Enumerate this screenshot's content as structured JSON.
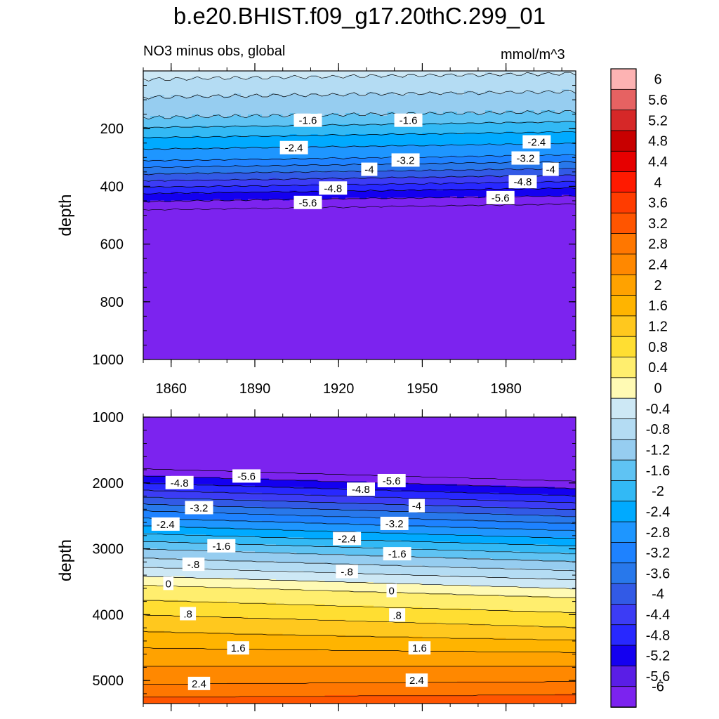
{
  "title": "b.e20.BHIST.f09_g17.20thC.299_01",
  "subtitle_left": "NO3 minus obs, global",
  "subtitle_right": "mmol/m^3",
  "colorbar": {
    "levels": [
      "6",
      "5.6",
      "5.2",
      "4.8",
      "4.4",
      "4",
      "3.6",
      "3.2",
      "2.8",
      "2.4",
      "2",
      "1.6",
      "1.2",
      "0.8",
      "0.4",
      "0",
      "-0.4",
      "-0.8",
      "-1.2",
      "-1.6",
      "-2",
      "-2.4",
      "-2.8",
      "-3.2",
      "-3.6",
      "-4",
      "-4.4",
      "-4.8",
      "-5.2",
      "-5.6",
      "-6"
    ],
    "colors": [
      "#fdb3b3",
      "#e66262",
      "#d62828",
      "#c80000",
      "#e60000",
      "#ff1a00",
      "#ff3c00",
      "#ff5500",
      "#ff7700",
      "#ff8800",
      "#ffa200",
      "#ffb400",
      "#ffc81e",
      "#ffde32",
      "#ffee6e",
      "#fffab4",
      "#cde8f5",
      "#b4dcf3",
      "#96cdf0",
      "#5fc3f3",
      "#32b9f5",
      "#00aaff",
      "#1e96ff",
      "#1e82ff",
      "#2878eb",
      "#325ae6",
      "#3c3cf5",
      "#2828ff",
      "#1400f0",
      "#5a1ee6",
      "#7c23ef"
    ]
  },
  "chart_data": [
    {
      "type": "heatmap",
      "subtype": "contour",
      "panel": "upper",
      "ylabel": "depth",
      "y_reversed": true,
      "ylim": [
        0,
        1000
      ],
      "xlim": [
        1850,
        2005
      ],
      "xticks": [
        1860,
        1890,
        1920,
        1950,
        1980
      ],
      "yticks": [
        200,
        400,
        600,
        800,
        1000
      ],
      "contour_interval": 0.4,
      "contour_labels": [
        {
          "text": "-1.6",
          "x": 1909,
          "depth": 172
        },
        {
          "text": "-1.6",
          "x": 1945,
          "depth": 172
        },
        {
          "text": "-2.4",
          "x": 1904,
          "depth": 267
        },
        {
          "text": "-2.4",
          "x": 1991,
          "depth": 247
        },
        {
          "text": "-3.2",
          "x": 1944,
          "depth": 310
        },
        {
          "text": "-3.2",
          "x": 1987,
          "depth": 303
        },
        {
          "text": "-4",
          "x": 1931,
          "depth": 342
        },
        {
          "text": "-4",
          "x": 1996,
          "depth": 342
        },
        {
          "text": "-4.8",
          "x": 1918,
          "depth": 407
        },
        {
          "text": "-4.8",
          "x": 1986,
          "depth": 385
        },
        {
          "text": "-5.6",
          "x": 1909,
          "depth": 457
        },
        {
          "text": "-5.6",
          "x": 1978,
          "depth": 440
        }
      ]
    },
    {
      "type": "heatmap",
      "subtype": "contour",
      "panel": "lower",
      "ylabel": "depth",
      "y_reversed": true,
      "ylim": [
        1000,
        5350
      ],
      "xlim": [
        1850,
        2005
      ],
      "yticks": [
        1000,
        2000,
        3000,
        4000,
        5000
      ],
      "contour_interval": 0.4,
      "contour_labels": [
        {
          "text": "-5.6",
          "x": 1887,
          "depth": 1900
        },
        {
          "text": "-5.6",
          "x": 1939,
          "depth": 1970
        },
        {
          "text": "-4.8",
          "x": 1863,
          "depth": 2000
        },
        {
          "text": "-4.8",
          "x": 1928,
          "depth": 2100
        },
        {
          "text": "-4",
          "x": 1948,
          "depth": 2350
        },
        {
          "text": "-3.2",
          "x": 1870,
          "depth": 2380
        },
        {
          "text": "-3.2",
          "x": 1940,
          "depth": 2620
        },
        {
          "text": "-2.4",
          "x": 1858,
          "depth": 2630
        },
        {
          "text": "-2.4",
          "x": 1923,
          "depth": 2850
        },
        {
          "text": "-1.6",
          "x": 1878,
          "depth": 2960
        },
        {
          "text": "-1.6",
          "x": 1941,
          "depth": 3080
        },
        {
          "text": "-.8",
          "x": 1868,
          "depth": 3240
        },
        {
          "text": "-.8",
          "x": 1923,
          "depth": 3350
        },
        {
          "text": "0",
          "x": 1859,
          "depth": 3530
        },
        {
          "text": "0",
          "x": 1939,
          "depth": 3640
        },
        {
          "text": ".8",
          "x": 1866,
          "depth": 3990
        },
        {
          "text": ".8",
          "x": 1941,
          "depth": 4010
        },
        {
          "text": "1.6",
          "x": 1884,
          "depth": 4510
        },
        {
          "text": "1.6",
          "x": 1949,
          "depth": 4510
        },
        {
          "text": "2.4",
          "x": 1870,
          "depth": 5050
        },
        {
          "text": "2.4",
          "x": 1948,
          "depth": 5000
        }
      ]
    }
  ]
}
